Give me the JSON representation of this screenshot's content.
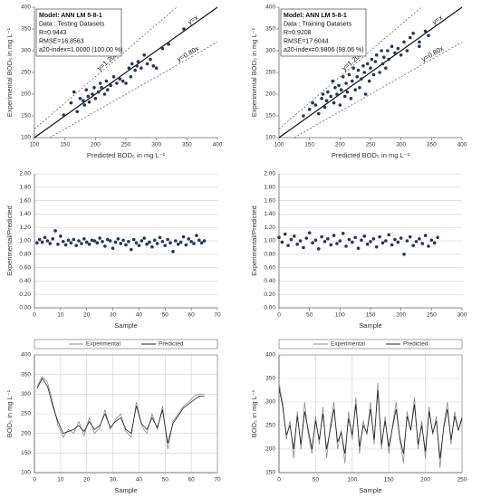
{
  "chart_data": [
    {
      "type": "scatter",
      "x_label": "Predicted BOD₅ in mg L⁻¹",
      "y_label": "Experimental BOD₅ in mg L⁻¹",
      "annotation": [
        "Model: ANN LM 5-8-1",
        "Data : Testing Datasets",
        "R=0.9443",
        "RMSE=16.8563",
        "a20-index=1.0000 (100.00 %)"
      ],
      "xlim": [
        100,
        400
      ],
      "ylim": [
        100,
        400
      ],
      "xticks": [
        100,
        150,
        200,
        250,
        300,
        350,
        400
      ],
      "yticks": [
        100,
        150,
        200,
        250,
        300,
        350,
        400
      ],
      "grid": false,
      "ref_lines": [
        {
          "slope": 1.2,
          "label": "y=1.20x",
          "dashed": true
        },
        {
          "slope": 1,
          "label": "y=x",
          "dashed": false
        },
        {
          "slope": 0.8,
          "label": "y=0.80x",
          "dashed": true
        }
      ],
      "x": [
        148,
        160,
        165,
        170,
        175,
        180,
        182,
        185,
        188,
        190,
        195,
        198,
        200,
        205,
        208,
        210,
        215,
        218,
        220,
        225,
        230,
        235,
        240,
        245,
        250,
        255,
        258,
        260,
        265,
        268,
        270,
        275,
        280,
        285,
        290,
        295,
        300,
        310,
        320,
        345
      ],
      "series": [
        {
          "color": "#1f3864",
          "values": [
            152,
            180,
            205,
            160,
            190,
            185,
            175,
            210,
            195,
            182,
            200,
            215,
            190,
            205,
            225,
            215,
            200,
            230,
            210,
            220,
            240,
            225,
            235,
            230,
            225,
            260,
            240,
            270,
            255,
            265,
            275,
            260,
            290,
            270,
            280,
            265,
            260,
            305,
            315,
            350
          ]
        }
      ]
    },
    {
      "type": "scatter",
      "x_label": "Predicted BOD₅ in mg L⁻¹",
      "y_label": "Experimental BOD₅ in mg L⁻¹",
      "annotation": [
        "Model: ANN LM 5-8-1",
        "Data : Training Datasets",
        "R=0.9208",
        "RMSE=17.6044",
        "a20-index=0.9806 (98.06 %)"
      ],
      "xlim": [
        100,
        400
      ],
      "ylim": [
        100,
        400
      ],
      "xticks": [
        100,
        150,
        200,
        250,
        300,
        350,
        400
      ],
      "yticks": [
        100,
        150,
        200,
        250,
        300,
        350,
        400
      ],
      "grid": false,
      "ref_lines": [
        {
          "slope": 1.2,
          "label": "y=1.20x",
          "dashed": true
        },
        {
          "slope": 1,
          "label": "y=x",
          "dashed": false
        },
        {
          "slope": 0.8,
          "label": "y=0.80x",
          "dashed": true
        }
      ],
      "x": [
        140,
        150,
        155,
        160,
        165,
        170,
        172,
        175,
        178,
        180,
        185,
        188,
        190,
        192,
        195,
        198,
        200,
        202,
        205,
        208,
        210,
        212,
        215,
        218,
        220,
        222,
        225,
        228,
        230,
        232,
        235,
        238,
        240,
        242,
        245,
        248,
        250,
        252,
        255,
        258,
        260,
        265,
        268,
        270,
        272,
        275,
        278,
        280,
        285,
        290,
        295,
        300,
        305,
        310,
        315,
        320,
        330,
        340,
        345,
        330
      ],
      "series": [
        {
          "color": "#1f3864",
          "values": [
            150,
            165,
            180,
            175,
            155,
            190,
            200,
            170,
            185,
            205,
            195,
            230,
            180,
            215,
            200,
            220,
            175,
            210,
            240,
            195,
            225,
            205,
            245,
            190,
            230,
            260,
            210,
            240,
            255,
            215,
            235,
            265,
            250,
            200,
            270,
            230,
            260,
            280,
            245,
            275,
            290,
            250,
            300,
            270,
            285,
            260,
            300,
            280,
            310,
            295,
            305,
            290,
            320,
            300,
            330,
            340,
            320,
            345,
            335,
            310
          ]
        }
      ]
    },
    {
      "type": "scatter",
      "x_label": "Sample",
      "y_label": "Experimental/Predicted",
      "xlim": [
        0,
        70
      ],
      "ylim": [
        0,
        2
      ],
      "xticks": [
        0,
        10,
        20,
        30,
        40,
        50,
        60,
        70
      ],
      "yticks": [
        {
          "value": 0,
          "label": "0.00"
        },
        {
          "value": 0.2,
          "label": "0.20"
        },
        {
          "value": 0.4,
          "label": "0.40"
        },
        {
          "value": 0.6,
          "label": "0.60"
        },
        {
          "value": 0.8,
          "label": "0.80"
        },
        {
          "value": 1,
          "label": "1.00"
        },
        {
          "value": 1.2,
          "label": "1.20"
        },
        {
          "value": 1.4,
          "label": "1.40"
        },
        {
          "value": 1.6,
          "label": "1.60"
        },
        {
          "value": 1.8,
          "label": "1.80"
        },
        {
          "value": 2,
          "label": "2.00"
        }
      ],
      "grid": "y",
      "x": [
        1,
        2,
        3,
        4,
        5,
        6,
        7,
        8,
        9,
        10,
        11,
        12,
        13,
        14,
        15,
        16,
        17,
        18,
        19,
        20,
        21,
        22,
        23,
        24,
        25,
        26,
        27,
        28,
        29,
        30,
        31,
        32,
        33,
        34,
        35,
        36,
        37,
        38,
        39,
        40,
        41,
        42,
        43,
        44,
        45,
        46,
        47,
        48,
        49,
        50,
        51,
        52,
        53,
        54,
        55,
        56,
        57,
        58,
        59,
        60,
        61,
        62,
        63,
        64,
        65
      ],
      "series": [
        {
          "color": "#1f3864",
          "values": [
            0.97,
            1.02,
            0.98,
            1.05,
            1.0,
            0.96,
            1.03,
            1.15,
            0.95,
            1.07,
            0.99,
            0.94,
            1.01,
            0.97,
            1.02,
            0.93,
            1.0,
            0.96,
            1.03,
            0.98,
            0.95,
            1.01,
            1.0,
            0.97,
            1.04,
            0.99,
            0.92,
            1.02,
            1.0,
            0.89,
            0.98,
            1.03,
            0.96,
            1.01,
            0.94,
            0.99,
            0.87,
            1.02,
            0.97,
            0.93,
            1.0,
            1.04,
            0.95,
            0.98,
            0.91,
            1.01,
            0.96,
            1.05,
            0.99,
            0.93,
            1.02,
            0.97,
            0.84,
            1.0,
            0.95,
            0.98,
            1.06,
            0.94,
            1.03,
            0.99,
            0.96,
            1.08,
            1.01,
            0.97,
            1.0
          ]
        }
      ]
    },
    {
      "type": "scatter",
      "x_label": "Sample",
      "y_label": "Experimental/Predicted",
      "xlim": [
        0,
        300
      ],
      "ylim": [
        0,
        2
      ],
      "xticks": [
        0,
        50,
        100,
        150,
        200,
        250,
        300
      ],
      "yticks": [
        {
          "value": 0,
          "label": "0.00"
        },
        {
          "value": 0.2,
          "label": "0.20"
        },
        {
          "value": 0.4,
          "label": "0.40"
        },
        {
          "value": 0.6,
          "label": "0.60"
        },
        {
          "value": 0.8,
          "label": "0.80"
        },
        {
          "value": 1,
          "label": "1.00"
        },
        {
          "value": 1.2,
          "label": "1.20"
        },
        {
          "value": 1.4,
          "label": "1.40"
        },
        {
          "value": 1.6,
          "label": "1.60"
        },
        {
          "value": 1.8,
          "label": "1.80"
        },
        {
          "value": 2,
          "label": "2.00"
        }
      ],
      "grid": "y",
      "x": [
        0,
        5,
        10,
        15,
        20,
        25,
        30,
        35,
        40,
        45,
        50,
        55,
        60,
        65,
        70,
        75,
        80,
        85,
        90,
        95,
        100,
        105,
        110,
        115,
        120,
        125,
        130,
        135,
        140,
        145,
        150,
        155,
        160,
        165,
        170,
        175,
        180,
        185,
        190,
        195,
        200,
        205,
        210,
        215,
        220,
        225,
        230,
        235,
        240,
        245,
        250,
        255,
        260
      ],
      "series": [
        {
          "color": "#1f3864",
          "values": [
            1.05,
            0.98,
            1.1,
            0.93,
            1.02,
            1.07,
            0.95,
            1.0,
            0.9,
            1.04,
            1.12,
            0.97,
            1.01,
            0.88,
            1.06,
            0.99,
            1.03,
            0.94,
            1.08,
            0.96,
            1.0,
            1.11,
            0.92,
            1.02,
            0.98,
            1.05,
            0.89,
            1.01,
            1.07,
            0.95,
            0.99,
            1.03,
            0.91,
            1.06,
            0.97,
            1.0,
            1.09,
            0.94,
            1.02,
            0.98,
            1.04,
            0.8,
            1.0,
            1.06,
            0.93,
            0.99,
            1.03,
            0.96,
            1.08,
            0.92,
            1.01,
            0.97,
            1.05
          ]
        }
      ]
    },
    {
      "type": "line",
      "x_label": "Sample",
      "y_label": "BOD₅ in mg L⁻¹",
      "legend": "top",
      "xlim": [
        0,
        70
      ],
      "ylim": [
        100,
        400
      ],
      "xticks": [
        0,
        10,
        20,
        30,
        40,
        50,
        60,
        70
      ],
      "yticks": [
        100,
        150,
        200,
        250,
        300,
        350,
        400
      ],
      "grid": "both",
      "x": [
        1,
        3,
        5,
        7,
        9,
        11,
        13,
        15,
        17,
        19,
        21,
        23,
        25,
        27,
        29,
        31,
        33,
        35,
        37,
        39,
        41,
        43,
        45,
        47,
        49,
        51,
        53,
        55,
        57,
        59,
        61,
        63,
        65
      ],
      "series": [
        {
          "name": "Experimental",
          "color": "#8c8c8c",
          "values": [
            320,
            345,
            330,
            280,
            220,
            190,
            210,
            200,
            230,
            195,
            240,
            200,
            215,
            260,
            210,
            235,
            250,
            205,
            190,
            280,
            220,
            200,
            250,
            210,
            270,
            160,
            230,
            250,
            270,
            280,
            295,
            300,
            300
          ]
        },
        {
          "name": "Predicted",
          "color": "#222222",
          "values": [
            315,
            340,
            320,
            270,
            230,
            200,
            205,
            210,
            220,
            205,
            230,
            210,
            220,
            250,
            215,
            230,
            240,
            210,
            200,
            270,
            225,
            210,
            240,
            215,
            260,
            175,
            225,
            245,
            265,
            275,
            285,
            295,
            295
          ]
        }
      ]
    },
    {
      "type": "line",
      "x_label": "Sample",
      "y_label": "BOD₅ in mg L⁻¹",
      "legend": "top",
      "xlim": [
        0,
        250
      ],
      "ylim": [
        150,
        400
      ],
      "xticks": [
        0,
        50,
        100,
        150,
        200,
        250
      ],
      "yticks": [
        150,
        200,
        250,
        300,
        350,
        400
      ],
      "grid": "both",
      "x": [
        0,
        5,
        10,
        15,
        20,
        25,
        30,
        35,
        40,
        45,
        50,
        55,
        60,
        65,
        70,
        75,
        80,
        85,
        90,
        95,
        100,
        105,
        110,
        115,
        120,
        125,
        130,
        135,
        140,
        145,
        150,
        155,
        160,
        165,
        170,
        175,
        180,
        185,
        190,
        195,
        200,
        205,
        210,
        215,
        220,
        225,
        230,
        235,
        240,
        245,
        250
      ],
      "series": [
        {
          "name": "Experimental",
          "color": "#8c8c8c",
          "values": [
            340,
            300,
            220,
            260,
            180,
            280,
            200,
            300,
            230,
            190,
            270,
            210,
            290,
            180,
            250,
            300,
            200,
            240,
            170,
            280,
            220,
            310,
            190,
            260,
            230,
            300,
            210,
            340,
            200,
            270,
            190,
            250,
            300,
            220,
            170,
            280,
            240,
            310,
            200,
            260,
            180,
            290,
            230,
            270,
            160,
            250,
            300,
            210,
            280,
            240,
            270
          ]
        },
        {
          "name": "Predicted",
          "color": "#222222",
          "values": [
            330,
            290,
            230,
            250,
            200,
            270,
            210,
            280,
            240,
            200,
            260,
            220,
            275,
            200,
            240,
            285,
            215,
            235,
            190,
            265,
            230,
            295,
            205,
            250,
            235,
            285,
            220,
            325,
            210,
            260,
            205,
            245,
            285,
            225,
            190,
            270,
            240,
            295,
            210,
            250,
            195,
            280,
            235,
            260,
            180,
            245,
            285,
            220,
            270,
            240,
            265
          ]
        }
      ]
    }
  ]
}
